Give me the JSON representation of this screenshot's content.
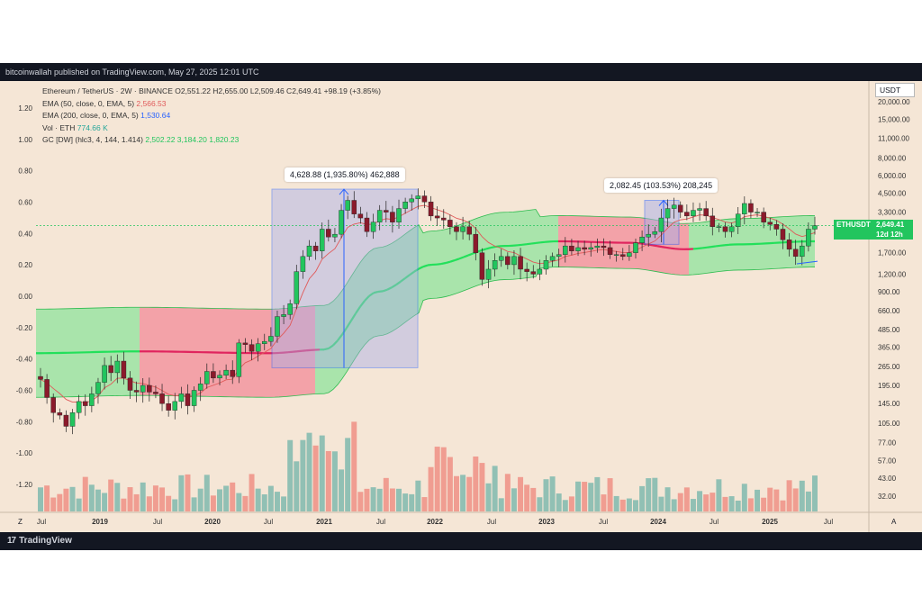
{
  "header": {
    "publish_line": "bitcoinwallah published on TradingView.com, May 27, 2025 12:01 UTC"
  },
  "footer": {
    "brand": "TradingView",
    "logo": "17"
  },
  "legend": {
    "symbol_line": "Ethereum / TetherUS · 2W · BINANCE",
    "ohlc": "O2,551.22  H2,655.00  L2,509.46  C2,649.41  +98.19 (+3.85%)",
    "ema50_label": "EMA (50, close, 0, EMA, 5)",
    "ema50_value": "2,566.53",
    "ema200_label": "EMA (200, close, 0, EMA, 5)",
    "ema200_value": "1,530.64",
    "vol_label": "Vol · ETH",
    "vol_value": "774.66 K",
    "gc_label": "GC [DW] (hlc3, 4, 144, 1.414)",
    "gc_values": "2,502.22   3,184.20   1,820.23"
  },
  "currency_button": "USDT",
  "price_tag": {
    "symbol": "ETHUSDT",
    "price": "2,649.41",
    "countdown": "12d 12h"
  },
  "measurements": [
    {
      "text": "4,628.88 (1,935.80%) 462,888"
    },
    {
      "text": "2,082.45 (103.53%) 208,245"
    }
  ],
  "corner_left": "Z",
  "corner_right": "A",
  "colors": {
    "background": "#f5e6d6",
    "up": "#22c55e",
    "down": "#8b1a2b",
    "ema50": "#e05a5a",
    "measure": "#2962ff",
    "band_green": "#8fe39c",
    "band_red": "#f28b98",
    "vol_up": "#7fb8ae",
    "vol_down": "#ef8f85"
  },
  "chart_data": {
    "type": "candlestick",
    "symbol": "ETHUSDT",
    "timeframe": "2W",
    "x_tick_labels": [
      "Jul",
      "2019",
      "Jul",
      "2020",
      "Jul",
      "2021",
      "Jul",
      "2022",
      "Jul",
      "2023",
      "Jul",
      "2024",
      "Jul",
      "2025",
      "Jul"
    ],
    "left_axis_ticks": [
      "1.20",
      "1.00",
      "0.80",
      "0.60",
      "0.40",
      "0.20",
      "0.00",
      "-0.20",
      "-0.40",
      "-0.60",
      "-0.80",
      "-1.00",
      "-1.20"
    ],
    "right_axis_ticks": [
      "20,000.00",
      "15,000.00",
      "11,000.00",
      "8,000.00",
      "6,000.00",
      "4,500.00",
      "3,300.00",
      "2,500.00",
      "1,700.00",
      "1,200.00",
      "900.00",
      "660.00",
      "485.00",
      "365.00",
      "265.00",
      "195.00",
      "145.00",
      "105.00",
      "77.00",
      "57.00",
      "43.00",
      "32.00"
    ],
    "price_scale": "log",
    "approx_closes": [
      215,
      160,
      125,
      120,
      100,
      125,
      150,
      140,
      170,
      205,
      270,
      240,
      290,
      220,
      180,
      175,
      195,
      175,
      170,
      145,
      130,
      150,
      170,
      140,
      180,
      200,
      245,
      220,
      230,
      250,
      225,
      390,
      380,
      340,
      385,
      400,
      435,
      600,
      620,
      740,
      1250,
      1600,
      1900,
      1750,
      2500,
      2200,
      2300,
      3400,
      4000,
      3200,
      3000,
      2400,
      2800,
      3400,
      3300,
      2800,
      3500,
      3900,
      4100,
      4300,
      3900,
      3100,
      3000,
      2900,
      2600,
      2400,
      2600,
      2300,
      1700,
      1100,
      1300,
      1500,
      1600,
      1400,
      1600,
      1300,
      1250,
      1200,
      1300,
      1500,
      1600,
      1650,
      1900,
      1750,
      1850,
      1800,
      1850,
      1900,
      1850,
      1650,
      1650,
      1600,
      1700,
      2000,
      2200,
      2300,
      2400,
      3000,
      3500,
      3700,
      3300,
      3100,
      3400,
      3500,
      3100,
      2600,
      2600,
      2400,
      2600,
      3200,
      3800,
      3300,
      3300,
      2800,
      2700,
      2500,
      2100,
      1800,
      1600,
      1900,
      2500,
      2649
    ],
    "measurements": [
      {
        "change": "4,628.88",
        "percent": "1,935.80%",
        "bars_value": "462,888"
      },
      {
        "change": "2,082.45",
        "percent": "103.53%",
        "bars_value": "208,245"
      }
    ],
    "ema50_last": 2566.53,
    "ema200_last": 1530.64,
    "volume_last": "774.66 K",
    "last_price": 2649.41
  }
}
